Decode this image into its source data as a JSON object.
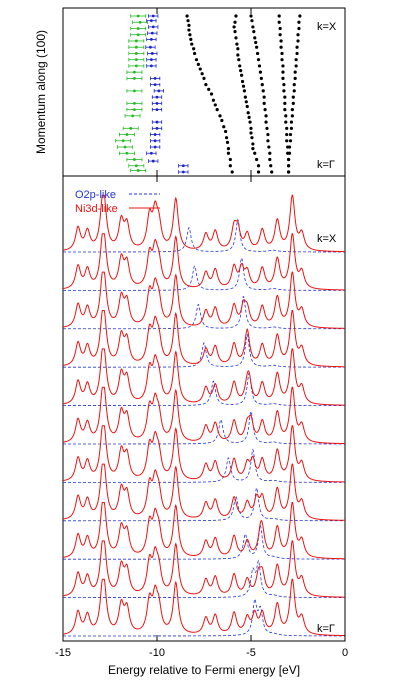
{
  "chart_data": [
    {
      "type": "scatter",
      "panel": "band-dispersion",
      "ylabel": "Momentum along (100)",
      "label_top": "k=X",
      "label_bottom": "k=Γ",
      "xlim": [
        -15,
        0
      ],
      "ylim": [
        0,
        1
      ],
      "series": [
        {
          "color": "#22bb22",
          "marker": "point with horizontal error bar",
          "xerr": 0.4,
          "points": [
            [
              -11.0,
              1.0
            ],
            [
              -10.9,
              0.96
            ],
            [
              -11.0,
              0.92
            ],
            [
              -11.0,
              0.88
            ],
            [
              -11.1,
              0.84
            ],
            [
              -11.1,
              0.8
            ],
            [
              -11.1,
              0.76
            ],
            [
              -11.1,
              0.72
            ],
            [
              -11.1,
              0.68
            ],
            [
              -11.2,
              0.64
            ],
            [
              -11.2,
              0.6
            ],
            [
              -11.2,
              0.52
            ],
            [
              -11.2,
              0.44
            ],
            [
              -11.2,
              0.4
            ],
            [
              -11.3,
              0.36
            ],
            [
              -11.4,
              0.28
            ],
            [
              -11.6,
              0.24
            ],
            [
              -11.8,
              0.2
            ],
            [
              -11.7,
              0.16
            ],
            [
              -11.6,
              0.12
            ],
            [
              -11.2,
              0.08
            ],
            [
              -11.1,
              0.04
            ],
            [
              -11.0,
              0.01
            ]
          ]
        },
        {
          "color": "#1a22cc",
          "marker": "point with horizontal error bar",
          "xerr": 0.25,
          "points": [
            [
              -10.2,
              1.0
            ],
            [
              -10.3,
              0.97
            ],
            [
              -10.2,
              0.93
            ],
            [
              -10.25,
              0.89
            ],
            [
              -10.3,
              0.85
            ],
            [
              -10.35,
              0.8
            ],
            [
              -10.25,
              0.76
            ],
            [
              -10.3,
              0.72
            ],
            [
              -10.3,
              0.68
            ],
            [
              -10.1,
              0.6
            ],
            [
              -10.1,
              0.56
            ],
            [
              -9.9,
              0.52
            ],
            [
              -10.0,
              0.48
            ],
            [
              -10.0,
              0.44
            ],
            [
              -10.0,
              0.4
            ],
            [
              -10.0,
              0.32
            ],
            [
              -10.0,
              0.28
            ],
            [
              -10.1,
              0.24
            ],
            [
              -10.1,
              0.2
            ],
            [
              -10.1,
              0.16
            ],
            [
              -10.3,
              0.12
            ],
            [
              -10.2,
              0.07
            ],
            [
              -8.6,
              0.04
            ],
            [
              -8.6,
              0.0
            ]
          ]
        },
        {
          "color": "#000000",
          "marker": "dot",
          "points": [
            [
              -8.4,
              1.0
            ],
            [
              -8.35,
              0.97
            ],
            [
              -8.3,
              0.94
            ],
            [
              -8.3,
              0.91
            ],
            [
              -8.25,
              0.88
            ],
            [
              -8.2,
              0.85
            ],
            [
              -8.15,
              0.82
            ],
            [
              -8.05,
              0.79
            ],
            [
              -8.0,
              0.76
            ],
            [
              -7.9,
              0.72
            ],
            [
              -7.8,
              0.69
            ],
            [
              -7.7,
              0.66
            ],
            [
              -7.6,
              0.63
            ],
            [
              -7.5,
              0.6
            ],
            [
              -7.4,
              0.56
            ],
            [
              -7.25,
              0.53
            ],
            [
              -7.1,
              0.5
            ],
            [
              -7.0,
              0.46
            ],
            [
              -6.9,
              0.43
            ],
            [
              -6.8,
              0.4
            ],
            [
              -6.65,
              0.36
            ],
            [
              -6.55,
              0.33
            ],
            [
              -6.45,
              0.29
            ],
            [
              -6.35,
              0.26
            ],
            [
              -6.3,
              0.22
            ],
            [
              -6.25,
              0.19
            ],
            [
              -6.2,
              0.15
            ],
            [
              -6.2,
              0.12
            ],
            [
              -6.1,
              0.08
            ],
            [
              -6.1,
              0.04
            ],
            [
              -6.0,
              0.0
            ],
            [
              -5.8,
              1.0
            ],
            [
              -5.85,
              0.96
            ],
            [
              -5.9,
              0.93
            ],
            [
              -5.85,
              0.9
            ],
            [
              -5.8,
              0.86
            ],
            [
              -5.75,
              0.82
            ],
            [
              -5.7,
              0.79
            ],
            [
              -5.7,
              0.75
            ],
            [
              -5.65,
              0.72
            ],
            [
              -5.6,
              0.68
            ],
            [
              -5.55,
              0.65
            ],
            [
              -5.5,
              0.62
            ],
            [
              -5.45,
              0.58
            ],
            [
              -5.4,
              0.55
            ],
            [
              -5.35,
              0.52
            ],
            [
              -5.3,
              0.48
            ],
            [
              -5.25,
              0.45
            ],
            [
              -5.2,
              0.42
            ],
            [
              -5.15,
              0.38
            ],
            [
              -5.1,
              0.35
            ],
            [
              -5.05,
              0.32
            ],
            [
              -5.0,
              0.28
            ],
            [
              -5.0,
              0.25
            ],
            [
              -4.95,
              0.22
            ],
            [
              -4.9,
              0.18
            ],
            [
              -4.9,
              0.15
            ],
            [
              -4.8,
              0.12
            ],
            [
              -4.7,
              0.08
            ],
            [
              -4.6,
              0.04
            ],
            [
              -4.6,
              0.0
            ],
            [
              -5.0,
              1.0
            ],
            [
              -4.95,
              0.97
            ],
            [
              -4.9,
              0.93
            ],
            [
              -4.85,
              0.9
            ],
            [
              -4.8,
              0.86
            ],
            [
              -4.75,
              0.83
            ],
            [
              -4.7,
              0.8
            ],
            [
              -4.65,
              0.76
            ],
            [
              -4.6,
              0.72
            ],
            [
              -4.55,
              0.68
            ],
            [
              -4.5,
              0.64
            ],
            [
              -4.45,
              0.6
            ],
            [
              -4.4,
              0.56
            ],
            [
              -4.35,
              0.52
            ],
            [
              -4.3,
              0.48
            ],
            [
              -4.3,
              0.44
            ],
            [
              -4.25,
              0.4
            ],
            [
              -4.2,
              0.36
            ],
            [
              -4.2,
              0.32
            ],
            [
              -4.15,
              0.28
            ],
            [
              -4.1,
              0.24
            ],
            [
              -4.1,
              0.2
            ],
            [
              -4.05,
              0.16
            ],
            [
              -4.0,
              0.12
            ],
            [
              -4.0,
              0.08
            ],
            [
              -3.95,
              0.04
            ],
            [
              -3.9,
              0.0
            ],
            [
              -3.5,
              1.0
            ],
            [
              -3.5,
              0.96
            ],
            [
              -3.45,
              0.92
            ],
            [
              -3.45,
              0.88
            ],
            [
              -3.4,
              0.84
            ],
            [
              -3.4,
              0.8
            ],
            [
              -3.35,
              0.76
            ],
            [
              -3.35,
              0.72
            ],
            [
              -3.3,
              0.68
            ],
            [
              -3.3,
              0.64
            ],
            [
              -3.3,
              0.6
            ],
            [
              -3.25,
              0.56
            ],
            [
              -3.25,
              0.52
            ],
            [
              -3.2,
              0.48
            ],
            [
              -3.2,
              0.44
            ],
            [
              -3.2,
              0.4
            ],
            [
              -3.15,
              0.36
            ],
            [
              -3.15,
              0.32
            ],
            [
              -3.1,
              0.28
            ],
            [
              -3.1,
              0.24
            ],
            [
              -3.1,
              0.2
            ],
            [
              -3.05,
              0.16
            ],
            [
              -3.05,
              0.12
            ],
            [
              -3.0,
              0.08
            ],
            [
              -3.0,
              0.04
            ],
            [
              -3.0,
              0.0
            ],
            [
              -2.4,
              1.0
            ],
            [
              -2.45,
              0.96
            ],
            [
              -2.45,
              0.92
            ],
            [
              -2.5,
              0.88
            ],
            [
              -2.5,
              0.84
            ],
            [
              -2.55,
              0.8
            ],
            [
              -2.55,
              0.76
            ],
            [
              -2.6,
              0.72
            ],
            [
              -2.6,
              0.68
            ],
            [
              -2.65,
              0.64
            ],
            [
              -2.65,
              0.6
            ],
            [
              -2.7,
              0.56
            ],
            [
              -2.7,
              0.52
            ],
            [
              -2.75,
              0.48
            ],
            [
              -2.75,
              0.44
            ],
            [
              -2.8,
              0.4
            ],
            [
              -2.8,
              0.36
            ],
            [
              -2.85,
              0.32
            ],
            [
              -2.85,
              0.28
            ],
            [
              -2.9,
              0.24
            ],
            [
              -2.9,
              0.2
            ],
            [
              -2.95,
              0.16
            ],
            [
              -2.95,
              0.12
            ],
            [
              -3.0,
              0.08
            ],
            [
              -3.0,
              0.04
            ],
            [
              -3.0,
              0.0
            ]
          ]
        }
      ]
    },
    {
      "type": "line",
      "panel": "spectra",
      "xlabel": "Energy relative to Fermi energy [eV]",
      "xlim": [
        -15,
        0
      ],
      "xticks": [
        -15,
        -10,
        -5,
        0
      ],
      "xtick_labels": [
        "-15",
        "-10",
        "-5",
        "0"
      ],
      "label_top": "k=X",
      "label_bottom": "k=Γ",
      "legend": [
        {
          "name": "O2p-like",
          "color": "#2233dd",
          "style": "dashed"
        },
        {
          "name": "Ni3d-like",
          "color": "#ee1111",
          "style": "solid"
        }
      ],
      "n_curves": 11,
      "ni3d_peaks": [
        [
          -14.2,
          0.42
        ],
        [
          -13.7,
          0.35
        ],
        [
          -12.9,
          0.65
        ],
        [
          -12.8,
          0.55
        ],
        [
          -11.9,
          0.52
        ],
        [
          -11.6,
          0.45
        ],
        [
          -10.4,
          0.58
        ],
        [
          -10.1,
          0.62
        ],
        [
          -9.9,
          0.4
        ],
        [
          -9.0,
          0.95
        ],
        [
          -7.4,
          0.3
        ],
        [
          -6.9,
          0.35
        ],
        [
          -5.9,
          0.4
        ],
        [
          -5.2,
          0.3
        ],
        [
          -4.4,
          0.38
        ],
        [
          -3.6,
          0.55
        ],
        [
          -2.8,
          1.0
        ],
        [
          -2.3,
          0.3
        ]
      ],
      "o2p_peak_positions": [
        -8.3,
        -8.0,
        -7.8,
        -7.5,
        -7.0,
        -6.6,
        -6.2,
        -5.8,
        -5.3,
        -4.9,
        -4.5
      ],
      "o2p_satellite_positions": [
        -5.7,
        -5.5,
        -5.4,
        -5.2,
        -5.1,
        -5.0,
        -4.9,
        -4.7,
        -4.5,
        -4.6,
        -4.8
      ],
      "ni3d_perturbation_positions": [
        -5.7,
        -5.5,
        -5.4,
        -5.2,
        -5.1,
        -5.0,
        -4.9,
        -4.7,
        -4.5,
        -4.6,
        -4.8
      ]
    }
  ]
}
